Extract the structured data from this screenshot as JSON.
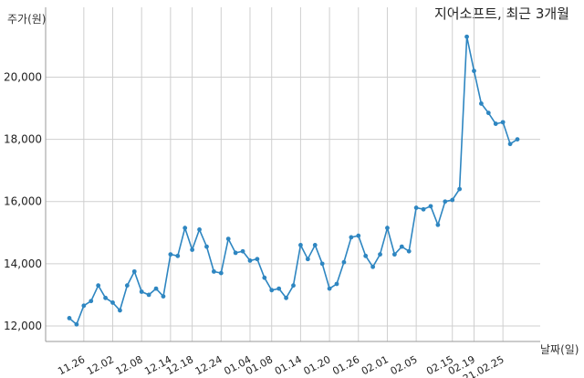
{
  "chart_data": {
    "type": "line",
    "title": "지어소프트, 최근 3개월",
    "ylabel": "주가(원)",
    "xlabel": "날짜(일)",
    "ylim": [
      11500,
      21600
    ],
    "yticks": [
      12000,
      14000,
      16000,
      18000,
      20000
    ],
    "ytick_labels": [
      "12,000",
      "14,000",
      "16,000",
      "18,000",
      "20,000"
    ],
    "xtick_labels": [
      "11.26",
      "12.02",
      "12.08",
      "12.14",
      "12.18",
      "12.24",
      "01.04",
      "01.08",
      "01.14",
      "01.20",
      "01.26",
      "02.01",
      "02.05",
      "02.15",
      "02.19",
      "21.02.25"
    ],
    "xtick_index": [
      2,
      6,
      10,
      14,
      17,
      21,
      25,
      28,
      32,
      36,
      40,
      44,
      48,
      53,
      56,
      60
    ],
    "grid": true,
    "legend": "none",
    "line_color": "#2e86c1",
    "series": [
      {
        "values": [
          12250,
          12050,
          12650,
          12800,
          13300,
          12900,
          12750,
          12500,
          13300,
          13750,
          13100,
          13000,
          13200,
          12950,
          14300,
          14250,
          15150,
          14450,
          15100,
          14550,
          13750,
          13700,
          14800,
          14350,
          14400,
          14100,
          14150,
          13550,
          13150,
          13200,
          12900,
          13300,
          14600,
          14150,
          14600,
          14000,
          13200,
          13350,
          14050,
          14850,
          14900,
          14250,
          13900,
          14300,
          15150,
          14300,
          14550,
          14400,
          15800,
          15750,
          15850,
          15250,
          16000,
          16050,
          16400,
          21300,
          20200,
          19150,
          18850,
          18500,
          18550,
          17850,
          18000
        ]
      }
    ]
  }
}
